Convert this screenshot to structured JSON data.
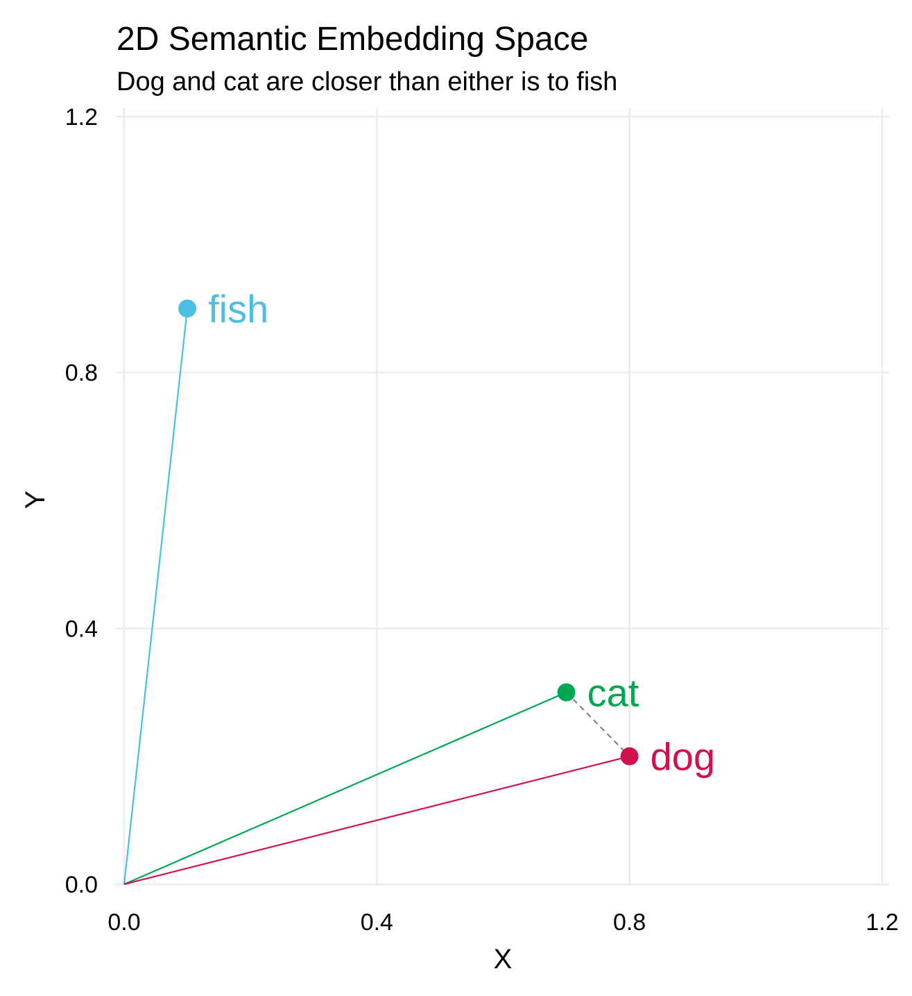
{
  "chart_data": {
    "type": "scatter",
    "title": "2D Semantic Embedding Space",
    "subtitle": "Dog and cat are closer than either is to fish",
    "xlabel": "X",
    "ylabel": "Y",
    "xlim": [
      0,
      1.2
    ],
    "ylim": [
      0,
      1.2
    ],
    "xticks": [
      "0.0",
      "0.4",
      "0.8",
      "1.2"
    ],
    "yticks": [
      "0.0",
      "0.4",
      "0.8",
      "1.2"
    ],
    "grid": true,
    "points": [
      {
        "label": "fish",
        "x": 0.1,
        "y": 0.9,
        "color": "#4BBEE3"
      },
      {
        "label": "cat",
        "x": 0.7,
        "y": 0.3,
        "color": "#00A651"
      },
      {
        "label": "dog",
        "x": 0.8,
        "y": 0.2,
        "color": "#D1114B"
      }
    ],
    "vectors_from_origin": true,
    "dashed_connector": {
      "from": "cat",
      "to": "dog",
      "color": "#777777"
    }
  }
}
